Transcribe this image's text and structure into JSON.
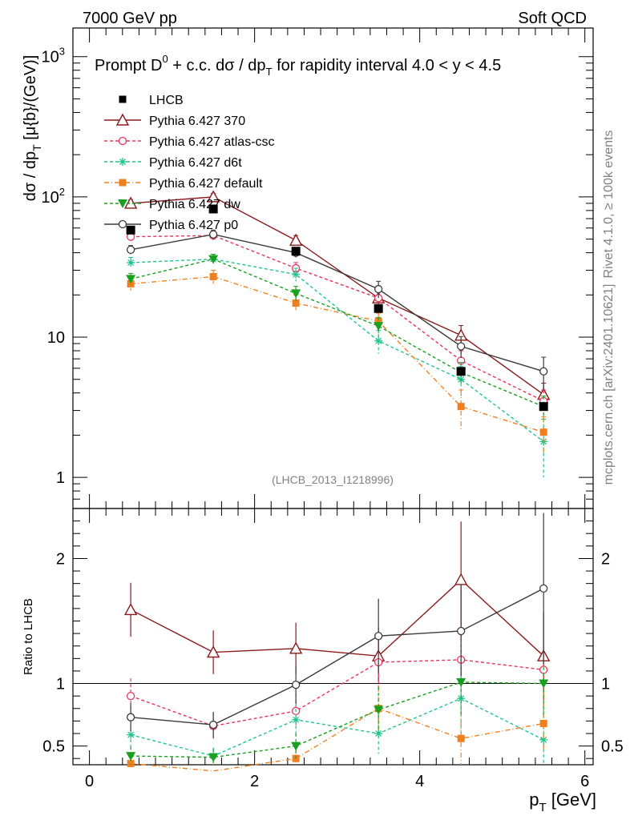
{
  "header": {
    "left": "7000 GeV pp",
    "right": "Soft QCD"
  },
  "main_title": {
    "prefix": "Prompt D",
    "sup": "0",
    "mid": " + c.c.  dσ / dp",
    "sub": "T",
    "suffix": " for rapidity interval 4.0 < y < 4.5"
  },
  "side_labels": {
    "rivet": "Rivet 4.1.0, ≥ 100k events",
    "mcplots": "mcplots.cern.ch [arXiv:2401.10621]"
  },
  "watermark": "(LHCB_2013_I1218996)",
  "y_label": {
    "a": "dσ / dp",
    "sub": "T",
    "b": " [μ{b}/(GeV)]"
  },
  "ratio_label": "Ratio to LHCB",
  "x_label": {
    "a": "p",
    "sub": "T",
    "b": " [GeV]"
  },
  "chart_data": {
    "type": "line",
    "x": [
      0.5,
      1.5,
      2.5,
      3.5,
      4.5,
      5.5
    ],
    "xlim": [
      -0.2,
      6.1
    ],
    "top_ylim": [
      0.6,
      1600
    ],
    "top_yscale": "log",
    "top_yticks": [
      {
        "v": 1,
        "label": "1"
      },
      {
        "v": 10,
        "label": "10"
      },
      {
        "v": 100,
        "label": "10",
        "sup": "2"
      },
      {
        "v": 1000,
        "label": "10",
        "sup": "3"
      }
    ],
    "xticks": [
      {
        "v": 0,
        "label": "0"
      },
      {
        "v": 2,
        "label": "2"
      },
      {
        "v": 4,
        "label": "4"
      },
      {
        "v": 6,
        "label": "6"
      }
    ],
    "ratio_ylim": [
      0.35,
      2.4
    ],
    "ratio_yticks": [
      {
        "v": 0.5,
        "label": "0.5"
      },
      {
        "v": 1,
        "label": "1"
      },
      {
        "v": 2,
        "label": "2"
      }
    ],
    "data": {
      "name": "LHCB",
      "color": "#000000",
      "values": [
        58,
        82,
        41,
        16,
        5.7,
        3.2
      ]
    },
    "series": [
      {
        "name": "Pythia 6.427 370",
        "color": "#8b1a1a",
        "dash": "",
        "marker": "triangle-open",
        "values": [
          90,
          100,
          49,
          19,
          10.3,
          3.9
        ],
        "err": [
          5,
          6,
          4,
          2,
          1.8,
          0.8
        ],
        "ratio": [
          1.59,
          1.25,
          1.28,
          1.22,
          1.83,
          1.22
        ]
      },
      {
        "name": "Pythia 6.427 atlas-csc",
        "color": "#e8345c",
        "dash": "4,3",
        "marker": "circle-open",
        "values": [
          52,
          53,
          31,
          19,
          6.8,
          3.5
        ],
        "err": [
          4,
          4,
          3,
          2,
          1.2,
          0.7
        ],
        "ratio": [
          0.9,
          0.66,
          0.78,
          1.17,
          1.19,
          1.11
        ]
      },
      {
        "name": "Pythia 6.427 d6t",
        "color": "#1fc48e",
        "dash": "4,3",
        "marker": "asterisk",
        "values": [
          34,
          36,
          28,
          9.4,
          5.0,
          1.8
        ],
        "err": [
          3,
          3,
          3,
          1.8,
          1.2,
          0.8
        ],
        "ratio": [
          0.59,
          0.42,
          0.71,
          0.6,
          0.88,
          0.55
        ]
      },
      {
        "name": "Pythia 6.427 default",
        "color": "#f07f1f",
        "dash": "6,3,1,3",
        "marker": "square",
        "values": [
          24,
          27,
          17.5,
          13,
          3.2,
          2.1
        ],
        "err": [
          2.5,
          3,
          2.5,
          1.8,
          1.0,
          0.6
        ],
        "ratio": [
          0.36,
          0.3,
          0.4,
          0.8,
          0.56,
          0.68
        ]
      },
      {
        "name": "Pythia 6.427 dw",
        "color": "#19a01f",
        "dash": "4,3",
        "marker": "triangle-down",
        "values": [
          26,
          36,
          20.5,
          12,
          5.6,
          3.2
        ],
        "err": [
          2.5,
          3,
          2.5,
          1.8,
          1.0,
          0.6
        ],
        "ratio": [
          0.42,
          0.41,
          0.5,
          0.79,
          1.01,
          1.0
        ]
      },
      {
        "name": "Pythia 6.427 p0",
        "color": "#3a3a3a",
        "dash": "",
        "marker": "circle-open",
        "values": [
          42,
          54,
          40,
          22,
          8.6,
          5.7
        ],
        "err": [
          3,
          4,
          3,
          3,
          1.5,
          1.5
        ],
        "ratio": [
          0.73,
          0.67,
          0.99,
          1.38,
          1.42,
          1.76
        ]
      }
    ]
  }
}
